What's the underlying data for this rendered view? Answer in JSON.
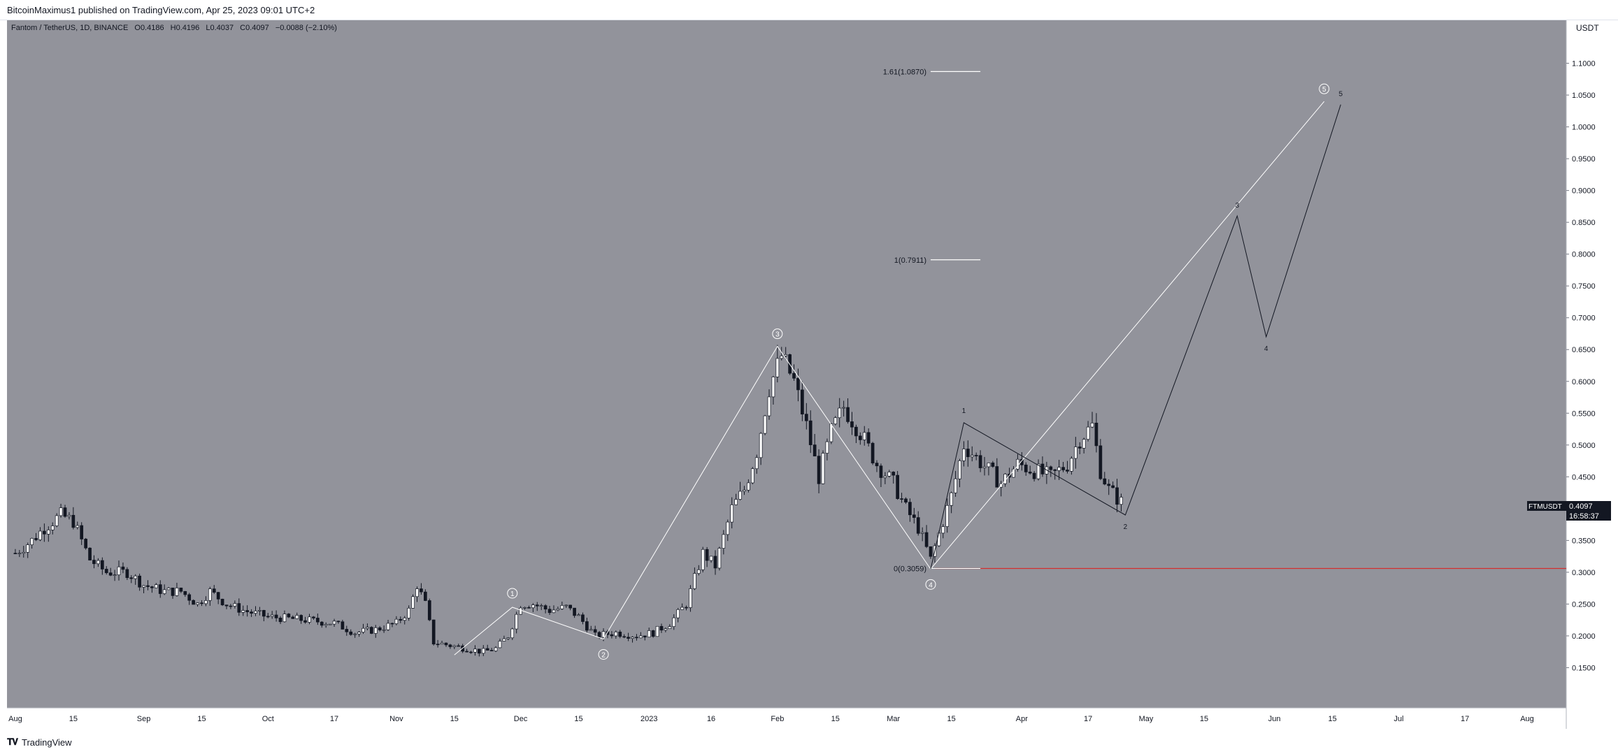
{
  "header": {
    "published_text": "BitcoinMaximus1 published on TradingView.com, Apr 25, 2023 09:01 UTC+2"
  },
  "symbol_bar": {
    "pair": "Fantom / TetherUS, 1D, BINANCE",
    "open_label": "O",
    "open_value": "0.4186",
    "high_label": "H",
    "high_value": "0.4196",
    "low_label": "L",
    "low_value": "0.4037",
    "close_label": "C",
    "close_value": "0.4097",
    "change": "−0.0088 (−2.10%)"
  },
  "price_axis": {
    "currency": "USDT",
    "ticker_label": "FTMUSDT",
    "last_price": "0.4097",
    "countdown": "16:58:37"
  },
  "footer": {
    "brand": "TradingView"
  },
  "colors": {
    "plot_background": "#92939b",
    "candle_up": "#ffffff",
    "candle_down": "#131722",
    "support_line": "#d32f2f",
    "wave_line_light": "#ffffff",
    "wave_line_dark": "#131722"
  },
  "chart_data": {
    "type": "candlestick",
    "xlabel": "",
    "ylabel": "",
    "ylim": [
      0.1,
      1.15
    ],
    "x_ticks": [
      "Aug",
      "15",
      "Sep",
      "15",
      "Oct",
      "17",
      "Nov",
      "15",
      "Dec",
      "15",
      "2023",
      "16",
      "Feb",
      "15",
      "Mar",
      "15",
      "Apr",
      "17",
      "May",
      "15",
      "Jun",
      "15",
      "Jul",
      "17",
      "Aug"
    ],
    "x_tick_dates": [
      "2022-08-01",
      "2022-08-15",
      "2022-09-01",
      "2022-09-15",
      "2022-10-01",
      "2022-10-17",
      "2022-11-01",
      "2022-11-15",
      "2022-12-01",
      "2022-12-15",
      "2023-01-01",
      "2023-01-16",
      "2023-02-01",
      "2023-02-15",
      "2023-03-01",
      "2023-03-15",
      "2023-04-01",
      "2023-04-17",
      "2023-05-01",
      "2023-05-15",
      "2023-06-01",
      "2023-06-15",
      "2023-07-01",
      "2023-07-17",
      "2023-08-01"
    ],
    "y_ticks": [
      "0.1500",
      "0.2000",
      "0.2500",
      "0.3000",
      "0.3500",
      "0.4000",
      "0.4500",
      "0.5000",
      "0.5500",
      "0.6000",
      "0.6500",
      "0.7000",
      "0.7500",
      "0.8000",
      "0.8500",
      "0.9000",
      "0.9500",
      "1.0000",
      "1.0500",
      "1.1000"
    ],
    "close_path": [
      [
        "2022-08-01",
        0.33
      ],
      [
        "2022-08-05",
        0.35
      ],
      [
        "2022-08-08",
        0.37
      ],
      [
        "2022-08-12",
        0.39
      ],
      [
        "2022-08-15",
        0.38
      ],
      [
        "2022-08-19",
        0.32
      ],
      [
        "2022-08-23",
        0.3
      ],
      [
        "2022-08-28",
        0.3
      ],
      [
        "2022-09-01",
        0.28
      ],
      [
        "2022-09-06",
        0.27
      ],
      [
        "2022-09-10",
        0.27
      ],
      [
        "2022-09-14",
        0.25
      ],
      [
        "2022-09-17",
        0.27
      ],
      [
        "2022-09-21",
        0.25
      ],
      [
        "2022-09-25",
        0.24
      ],
      [
        "2022-10-01",
        0.23
      ],
      [
        "2022-10-10",
        0.225
      ],
      [
        "2022-10-17",
        0.22
      ],
      [
        "2022-10-22",
        0.205
      ],
      [
        "2022-10-27",
        0.21
      ],
      [
        "2022-11-01",
        0.22
      ],
      [
        "2022-11-04",
        0.24
      ],
      [
        "2022-11-06",
        0.28
      ],
      [
        "2022-11-08",
        0.25
      ],
      [
        "2022-11-10",
        0.19
      ],
      [
        "2022-11-14",
        0.185
      ],
      [
        "2022-11-18",
        0.18
      ],
      [
        "2022-11-22",
        0.175
      ],
      [
        "2022-11-25",
        0.18
      ],
      [
        "2022-11-28",
        0.2
      ],
      [
        "2022-12-01",
        0.25
      ],
      [
        "2022-12-04",
        0.25
      ],
      [
        "2022-12-08",
        0.24
      ],
      [
        "2022-12-12",
        0.245
      ],
      [
        "2022-12-15",
        0.23
      ],
      [
        "2022-12-19",
        0.2
      ],
      [
        "2022-12-24",
        0.205
      ],
      [
        "2022-12-29",
        0.2
      ],
      [
        "2023-01-02",
        0.205
      ],
      [
        "2023-01-06",
        0.22
      ],
      [
        "2023-01-10",
        0.25
      ],
      [
        "2023-01-14",
        0.33
      ],
      [
        "2023-01-17",
        0.31
      ],
      [
        "2023-01-21",
        0.4
      ],
      [
        "2023-01-24",
        0.43
      ],
      [
        "2023-01-27",
        0.49
      ],
      [
        "2023-01-30",
        0.59
      ],
      [
        "2023-02-02",
        0.64
      ],
      [
        "2023-02-05",
        0.6
      ],
      [
        "2023-02-08",
        0.53
      ],
      [
        "2023-02-11",
        0.45
      ],
      [
        "2023-02-14",
        0.52
      ],
      [
        "2023-02-17",
        0.56
      ],
      [
        "2023-02-21",
        0.52
      ],
      [
        "2023-02-25",
        0.47
      ],
      [
        "2023-03-01",
        0.44
      ],
      [
        "2023-03-04",
        0.4
      ],
      [
        "2023-03-07",
        0.37
      ],
      [
        "2023-03-10",
        0.32
      ],
      [
        "2023-03-12",
        0.36
      ],
      [
        "2023-03-15",
        0.42
      ],
      [
        "2023-03-18",
        0.5
      ],
      [
        "2023-03-21",
        0.48
      ],
      [
        "2023-03-24",
        0.46
      ],
      [
        "2023-03-27",
        0.44
      ],
      [
        "2023-03-31",
        0.47
      ],
      [
        "2023-04-04",
        0.46
      ],
      [
        "2023-04-08",
        0.45
      ],
      [
        "2023-04-12",
        0.47
      ],
      [
        "2023-04-15",
        0.51
      ],
      [
        "2023-04-18",
        0.53
      ],
      [
        "2023-04-20",
        0.46
      ],
      [
        "2023-04-22",
        0.43
      ],
      [
        "2023-04-25",
        0.41
      ]
    ],
    "overlays": [
      {
        "type": "horizontal_line",
        "label": "0(0.3059)",
        "value": 0.3059,
        "color": "#d32f2f"
      },
      {
        "type": "fib_level",
        "label": "1(0.7911)",
        "value": 0.7911
      },
      {
        "type": "fib_level",
        "label": "1.61(1.0870)",
        "value": 1.087
      }
    ],
    "wave_count_main": [
      {
        "label": "1",
        "date": "2022-11-29",
        "value": 0.245
      },
      {
        "label": "2",
        "date": "2022-12-21",
        "value": 0.195
      },
      {
        "label": "3",
        "date": "2023-02-01",
        "value": 0.655
      },
      {
        "label": "4",
        "date": "2023-03-10",
        "value": 0.305
      },
      {
        "label": "5",
        "date": "2023-06-13",
        "value": 1.04
      }
    ],
    "wave_count_sub": [
      {
        "label": "1",
        "date": "2023-03-18",
        "value": 0.535
      },
      {
        "label": "2",
        "date": "2023-04-26",
        "value": 0.39
      },
      {
        "label": "3",
        "date": "2023-05-23",
        "value": 0.86
      },
      {
        "label": "4",
        "date": "2023-05-30",
        "value": 0.67
      },
      {
        "label": "5",
        "date": "2023-06-17",
        "value": 1.035
      }
    ]
  }
}
